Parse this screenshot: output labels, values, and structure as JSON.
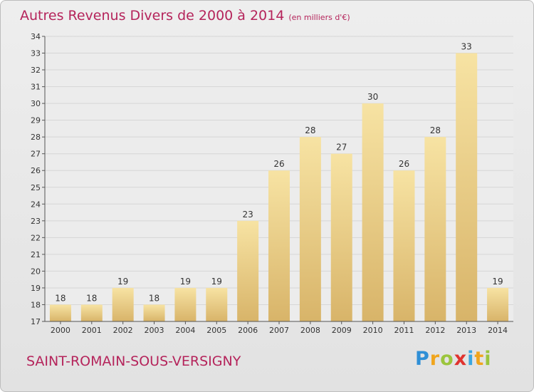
{
  "title": {
    "main": "Autres Revenus Divers de 2000 à 2014",
    "unit": "(en milliers d'€)"
  },
  "commune": "SAINT-ROMAIN-SOUS-VERSIGNY",
  "logo": {
    "letters": [
      "P",
      "r",
      "o",
      "x",
      "i",
      "t",
      "i"
    ],
    "colors": [
      "#2f8fd6",
      "#f0a51d",
      "#9bc53d",
      "#e0332f",
      "#3ba7e0",
      "#f0a51d",
      "#9bc53d"
    ]
  },
  "chart_data": {
    "type": "bar",
    "categories": [
      "2000",
      "2001",
      "2002",
      "2003",
      "2004",
      "2005",
      "2006",
      "2007",
      "2008",
      "2009",
      "2010",
      "2011",
      "2012",
      "2013",
      "2014"
    ],
    "values": [
      18,
      18,
      19,
      18,
      19,
      19,
      23,
      26,
      28,
      27,
      30,
      26,
      28,
      33,
      19
    ],
    "ylim": [
      17,
      34
    ],
    "yticks": [
      17,
      18,
      19,
      20,
      21,
      22,
      23,
      24,
      25,
      26,
      27,
      28,
      29,
      30,
      31,
      32,
      33,
      34
    ],
    "grid": true,
    "colors": {
      "bar_light": "#f7e3a3",
      "bar_dark": "#d8b469",
      "grid": "#d6d6d6",
      "text": "#333333"
    }
  }
}
